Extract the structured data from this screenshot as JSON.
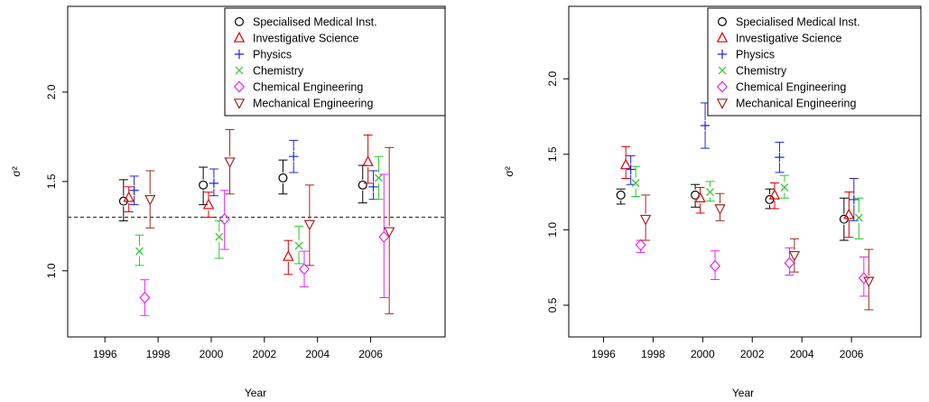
{
  "chart_data": [
    {
      "type": "scatter",
      "xlabel": "Year",
      "ylabel": "σ²",
      "x_ticks": [
        1996,
        1998,
        2000,
        2002,
        2004,
        2006
      ],
      "y_ticks": [
        1.0,
        1.5,
        2.0
      ],
      "xlim": [
        1994.6,
        2008.8
      ],
      "ylim": [
        0.63,
        2.48
      ],
      "reference_line": 1.3,
      "legend_position": "top-right",
      "series": [
        {
          "name": "Specialised Medical Inst.",
          "marker": "circle",
          "color": "#000000",
          "points": [
            {
              "x": 1996.7,
              "y": 1.39,
              "lo": 1.28,
              "hi": 1.51
            },
            {
              "x": 1999.7,
              "y": 1.48,
              "lo": 1.37,
              "hi": 1.58
            },
            {
              "x": 2002.7,
              "y": 1.52,
              "lo": 1.43,
              "hi": 1.62
            },
            {
              "x": 2005.7,
              "y": 1.48,
              "lo": 1.38,
              "hi": 1.59
            }
          ]
        },
        {
          "name": "Investigative Science",
          "marker": "triangle-up",
          "color": "#DF0000",
          "points": [
            {
              "x": 1996.9,
              "y": 1.41,
              "lo": 1.33,
              "hi": 1.47
            },
            {
              "x": 1999.9,
              "y": 1.37,
              "lo": 1.3,
              "hi": 1.44
            },
            {
              "x": 2002.9,
              "y": 1.08,
              "lo": 0.98,
              "hi": 1.17
            },
            {
              "x": 2005.9,
              "y": 1.61,
              "lo": 1.49,
              "hi": 1.76
            }
          ]
        },
        {
          "name": "Physics",
          "marker": "plus",
          "color": "#2222DD",
          "points": [
            {
              "x": 1997.1,
              "y": 1.45,
              "lo": 1.37,
              "hi": 1.53
            },
            {
              "x": 2000.1,
              "y": 1.49,
              "lo": 1.42,
              "hi": 1.57
            },
            {
              "x": 2003.1,
              "y": 1.64,
              "lo": 1.55,
              "hi": 1.73
            },
            {
              "x": 2006.1,
              "y": 1.47,
              "lo": 1.4,
              "hi": 1.56
            }
          ]
        },
        {
          "name": "Chemistry",
          "marker": "cross",
          "color": "#22CC22",
          "points": [
            {
              "x": 1997.3,
              "y": 1.11,
              "lo": 1.03,
              "hi": 1.2
            },
            {
              "x": 2000.3,
              "y": 1.19,
              "lo": 1.07,
              "hi": 1.28
            },
            {
              "x": 2003.3,
              "y": 1.14,
              "lo": 1.04,
              "hi": 1.25
            },
            {
              "x": 2006.3,
              "y": 1.52,
              "lo": 1.4,
              "hi": 1.64
            }
          ]
        },
        {
          "name": "Chemical Engineering",
          "marker": "diamond",
          "color": "#EE22EE",
          "points": [
            {
              "x": 1997.5,
              "y": 0.85,
              "lo": 0.75,
              "hi": 0.95
            },
            {
              "x": 2000.5,
              "y": 1.29,
              "lo": 1.12,
              "hi": 1.45
            },
            {
              "x": 2003.5,
              "y": 1.01,
              "lo": 0.91,
              "hi": 1.11
            },
            {
              "x": 2006.5,
              "y": 1.19,
              "lo": 0.85,
              "hi": 1.54
            }
          ]
        },
        {
          "name": "Mechanical Engineering",
          "marker": "triangle-down",
          "color": "#A0281E",
          "points": [
            {
              "x": 1997.7,
              "y": 1.4,
              "lo": 1.24,
              "hi": 1.56
            },
            {
              "x": 2000.7,
              "y": 1.61,
              "lo": 1.43,
              "hi": 1.79
            },
            {
              "x": 2003.7,
              "y": 1.26,
              "lo": 1.03,
              "hi": 1.48
            },
            {
              "x": 2006.7,
              "y": 1.22,
              "lo": 0.76,
              "hi": 1.69
            }
          ]
        }
      ]
    },
    {
      "type": "scatter",
      "xlabel": "Year",
      "ylabel": "σ²",
      "x_ticks": [
        1996,
        1998,
        2000,
        2002,
        2004,
        2006
      ],
      "y_ticks": [
        0.5,
        1.0,
        1.5,
        2.0
      ],
      "xlim": [
        1994.6,
        2008.8
      ],
      "ylim": [
        0.29,
        2.48
      ],
      "reference_line": null,
      "legend_position": "top-right",
      "series": [
        {
          "name": "Specialised Medical Inst.",
          "marker": "circle",
          "color": "#000000",
          "points": [
            {
              "x": 1996.7,
              "y": 1.23,
              "lo": 1.17,
              "hi": 1.27
            },
            {
              "x": 1999.7,
              "y": 1.23,
              "lo": 1.15,
              "hi": 1.3
            },
            {
              "x": 2002.7,
              "y": 1.2,
              "lo": 1.14,
              "hi": 1.27
            },
            {
              "x": 2005.7,
              "y": 1.07,
              "lo": 0.93,
              "hi": 1.21
            }
          ]
        },
        {
          "name": "Investigative Science",
          "marker": "triangle-up",
          "color": "#DF0000",
          "points": [
            {
              "x": 1996.9,
              "y": 1.43,
              "lo": 1.34,
              "hi": 1.55
            },
            {
              "x": 1999.9,
              "y": 1.21,
              "lo": 1.11,
              "hi": 1.28
            },
            {
              "x": 2002.9,
              "y": 1.23,
              "lo": 1.14,
              "hi": 1.31
            },
            {
              "x": 2005.9,
              "y": 1.1,
              "lo": 0.95,
              "hi": 1.25
            }
          ]
        },
        {
          "name": "Physics",
          "marker": "plus",
          "color": "#2222DD",
          "points": [
            {
              "x": 1997.1,
              "y": 1.4,
              "lo": 1.3,
              "hi": 1.49
            },
            {
              "x": 2000.1,
              "y": 1.69,
              "lo": 1.54,
              "hi": 1.84
            },
            {
              "x": 2003.1,
              "y": 1.48,
              "lo": 1.38,
              "hi": 1.58
            },
            {
              "x": 2006.1,
              "y": 1.2,
              "lo": 1.06,
              "hi": 1.34
            }
          ]
        },
        {
          "name": "Chemistry",
          "marker": "cross",
          "color": "#22CC22",
          "points": [
            {
              "x": 1997.3,
              "y": 1.31,
              "lo": 1.22,
              "hi": 1.42
            },
            {
              "x": 2000.3,
              "y": 1.25,
              "lo": 1.19,
              "hi": 1.32
            },
            {
              "x": 2003.3,
              "y": 1.28,
              "lo": 1.21,
              "hi": 1.36
            },
            {
              "x": 2006.3,
              "y": 1.08,
              "lo": 0.94,
              "hi": 1.21
            }
          ]
        },
        {
          "name": "Chemical Engineering",
          "marker": "diamond",
          "color": "#EE22EE",
          "points": [
            {
              "x": 1997.5,
              "y": 0.9,
              "lo": 0.85,
              "hi": 0.93
            },
            {
              "x": 2000.5,
              "y": 0.76,
              "lo": 0.67,
              "hi": 0.86
            },
            {
              "x": 2003.5,
              "y": 0.78,
              "lo": 0.7,
              "hi": 0.88
            },
            {
              "x": 2006.5,
              "y": 0.68,
              "lo": 0.56,
              "hi": 0.82
            }
          ]
        },
        {
          "name": "Mechanical Engineering",
          "marker": "triangle-down",
          "color": "#A0281E",
          "points": [
            {
              "x": 1997.7,
              "y": 1.07,
              "lo": 0.93,
              "hi": 1.23
            },
            {
              "x": 2000.7,
              "y": 1.14,
              "lo": 1.06,
              "hi": 1.24
            },
            {
              "x": 2003.7,
              "y": 0.83,
              "lo": 0.72,
              "hi": 0.94
            },
            {
              "x": 2006.7,
              "y": 0.66,
              "lo": 0.47,
              "hi": 0.87
            }
          ]
        }
      ]
    }
  ]
}
